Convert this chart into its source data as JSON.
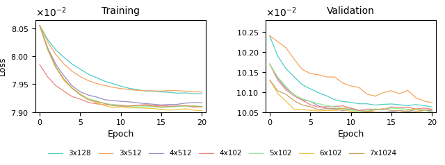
{
  "title_train": "Training",
  "title_val": "Validation",
  "xlabel": "Epoch",
  "ylabel": "Loss",
  "legend_labels": [
    "3x128",
    "3x512",
    "4x512",
    "4x102",
    "5x102",
    "6x102",
    "7x1024"
  ],
  "colors": [
    "#4ecdc4",
    "#f4a460",
    "#9b8ec4",
    "#f08080",
    "#90ee90",
    "#f0c040",
    "#c8a060"
  ],
  "train_ylim": [
    0.079,
    0.08065
  ],
  "val_ylim": [
    0.1005,
    0.1028
  ],
  "xlim": [
    -0.5,
    20.5
  ],
  "xticks": [
    0,
    5,
    10,
    15,
    20
  ],
  "epochs": 21
}
